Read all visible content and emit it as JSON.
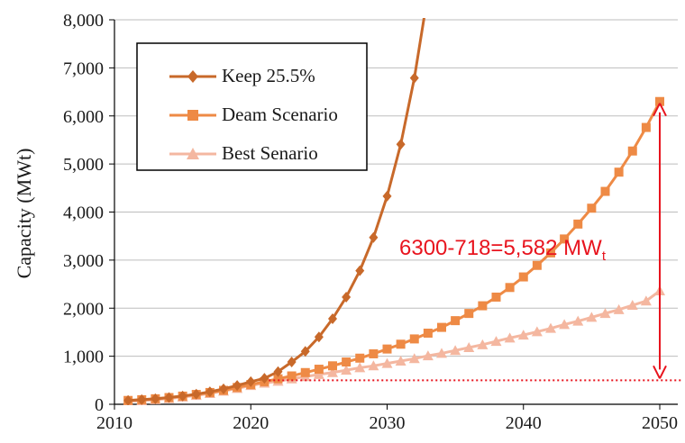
{
  "chart_data": {
    "type": "line",
    "xlabel": "",
    "ylabel": "Capacity (MWt)",
    "xlim": [
      2010,
      2050
    ],
    "ylim": [
      0,
      8000
    ],
    "x_ticks": [
      "2010",
      "2020",
      "2030",
      "2040",
      "2050"
    ],
    "y_ticks": [
      "0",
      "1,000",
      "2,000",
      "3,000",
      "4,000",
      "5,000",
      "6,000",
      "7,000",
      "8,000"
    ],
    "grid": "horizontal",
    "legend_position": "top-left",
    "x": [
      2011,
      2012,
      2013,
      2014,
      2015,
      2016,
      2017,
      2018,
      2019,
      2020,
      2021,
      2022,
      2023,
      2024,
      2025,
      2026,
      2027,
      2028,
      2029,
      2030,
      2031,
      2032,
      2033,
      2034,
      2035,
      2036,
      2037,
      2038,
      2039,
      2040,
      2041,
      2042,
      2043,
      2044,
      2045,
      2046,
      2047,
      2048,
      2049,
      2050
    ],
    "series": [
      {
        "name": "Keep 25.5%",
        "color": "#C8692A",
        "marker": "diamond",
        "values": [
          80,
          95,
          115,
          140,
          170,
          210,
          260,
          320,
          390,
          470,
          540,
          680,
          880,
          1100,
          1400,
          1780,
          2230,
          2780,
          3470,
          4330,
          5410,
          6790,
          8550,
          null,
          null,
          null,
          null,
          null,
          null,
          null,
          null,
          null,
          null,
          null,
          null,
          null,
          null,
          null,
          null,
          null
        ]
      },
      {
        "name": "Deam Scenario",
        "color": "#EE8A45",
        "marker": "square",
        "values": [
          80,
          95,
          115,
          140,
          170,
          205,
          245,
          290,
          350,
          410,
          470,
          530,
          590,
          660,
          730,
          800,
          880,
          960,
          1050,
          1150,
          1250,
          1360,
          1480,
          1600,
          1740,
          1890,
          2050,
          2230,
          2430,
          2650,
          2890,
          3150,
          3440,
          3750,
          4080,
          4430,
          4830,
          5270,
          5760,
          6300
        ]
      },
      {
        "name": "Best Senario",
        "color": "#F4B7A0",
        "marker": "triangle",
        "values": [
          60,
          75,
          95,
          120,
          150,
          185,
          225,
          275,
          330,
          390,
          440,
          480,
          530,
          575,
          620,
          660,
          710,
          760,
          800,
          850,
          900,
          950,
          1010,
          1060,
          1120,
          1180,
          1240,
          1310,
          1380,
          1440,
          1510,
          1580,
          1660,
          1730,
          1810,
          1890,
          1970,
          2060,
          2150,
          2360
        ]
      }
    ],
    "annotations": {
      "difference_label": "6300-718=5,582 MW",
      "difference_subscript": "t",
      "difference_color": "#E8141E",
      "arrow_from": 6300,
      "arrow_to": 718,
      "baseline_value": 500
    }
  }
}
